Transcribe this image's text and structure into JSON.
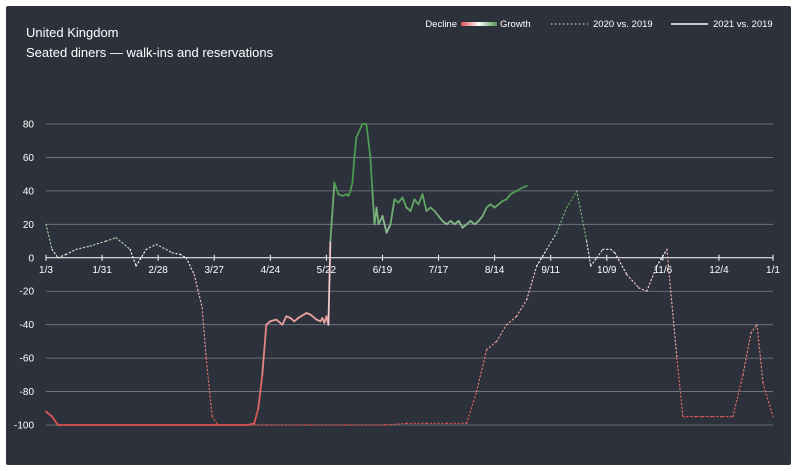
{
  "header": {
    "title": "United Kingdom",
    "subtitle": "Seated diners — walk-ins and reservations"
  },
  "legend": {
    "decline_label": "Decline",
    "growth_label": "Growth",
    "series_2020_label": "2020 vs. 2019",
    "series_2021_label": "2021 vs. 2019",
    "placement": "top-right"
  },
  "colors": {
    "background": "#2d313b",
    "gridline": "#7a7e87",
    "decline": "#d9534f",
    "growth": "#4c9a4f",
    "neutral": "#ffffff",
    "dotted": "#c9c9cc"
  },
  "chart_data": {
    "type": "line",
    "title": "United Kingdom",
    "subtitle": "Seated diners — walk-ins and reservations",
    "xlabel": "",
    "ylabel": "",
    "x_tick_labels": [
      "1/3",
      "1/31",
      "2/28",
      "3/27",
      "4/24",
      "5/22",
      "6/19",
      "7/17",
      "8/14",
      "9/11",
      "10/9",
      "11/6",
      "12/4",
      "1/1"
    ],
    "y_ticks": [
      80,
      60,
      40,
      20,
      0,
      -20,
      -40,
      -60,
      -80,
      -100
    ],
    "ylim": [
      -100,
      100
    ],
    "xlim_days": [
      0,
      363
    ],
    "grid": true,
    "series": [
      {
        "name": "2020 vs. 2019",
        "style": "dotted",
        "x_days": [
          0,
          3,
          6,
          10,
          15,
          22,
          30,
          35,
          42,
          45,
          50,
          55,
          60,
          63,
          67,
          70,
          74,
          78,
          80,
          83,
          86,
          90,
          100,
          110,
          130,
          150,
          170,
          180,
          190,
          200,
          210,
          215,
          220,
          225,
          230,
          235,
          240,
          245,
          250,
          255,
          260,
          265,
          270,
          272,
          275,
          278,
          280,
          282,
          284,
          290,
          296,
          300,
          305,
          310,
          315,
          318,
          320,
          322,
          325,
          328,
          333,
          338,
          343,
          348,
          352,
          355,
          358,
          363
        ],
        "y": [
          20,
          5,
          0,
          2,
          5,
          7,
          10,
          12,
          5,
          -5,
          5,
          8,
          5,
          3,
          2,
          0,
          -10,
          -30,
          -60,
          -95,
          -100,
          -100,
          -100,
          -100,
          -100,
          -100,
          -100,
          -99,
          -99,
          -99,
          -99,
          -80,
          -55,
          -50,
          -40,
          -35,
          -25,
          -5,
          5,
          15,
          30,
          40,
          10,
          -5,
          0,
          5,
          5,
          5,
          3,
          -10,
          -18,
          -20,
          -5,
          5,
          -60,
          -95,
          -95,
          -95,
          -95,
          -95,
          -95,
          -95,
          -95,
          -70,
          -45,
          -40,
          -75,
          -95
        ]
      },
      {
        "name": "2021 vs. 2019",
        "style": "solid",
        "coloring": "diverging (decline red, growth green)",
        "x_days": [
          0,
          3,
          6,
          10,
          20,
          30,
          40,
          50,
          60,
          70,
          80,
          85,
          90,
          95,
          98,
          101,
          104,
          106,
          108,
          110,
          112,
          115,
          118,
          120,
          122,
          124,
          126,
          130,
          132,
          135,
          137,
          138,
          139,
          140,
          141,
          142,
          144,
          146,
          148,
          150,
          151,
          152,
          153,
          154,
          155,
          158,
          160,
          161,
          162,
          163,
          164,
          165,
          166,
          168,
          170,
          172,
          174,
          176,
          178,
          180,
          182,
          184,
          186,
          188,
          190,
          192,
          194,
          196,
          198,
          200,
          202,
          204,
          206,
          208,
          210,
          212,
          214,
          216,
          218,
          220,
          222,
          224,
          226,
          228,
          230,
          232,
          235,
          238,
          240
        ],
        "y": [
          -92,
          -95,
          -100,
          -100,
          -100,
          -100,
          -100,
          -100,
          -100,
          -100,
          -100,
          -100,
          -100,
          -100,
          -100,
          -100,
          -99,
          -90,
          -70,
          -40,
          -38,
          -37,
          -40,
          -35,
          -36,
          -38,
          -36,
          -33,
          -34,
          -37,
          -38,
          -36,
          -39,
          -35,
          -40,
          10,
          45,
          38,
          37,
          38,
          37,
          40,
          45,
          60,
          72,
          80,
          80,
          70,
          60,
          40,
          20,
          30,
          20,
          25,
          15,
          20,
          35,
          33,
          36,
          30,
          28,
          35,
          32,
          38,
          28,
          30,
          28,
          25,
          22,
          20,
          22,
          20,
          22,
          18,
          20,
          22,
          20,
          22,
          25,
          30,
          32,
          30,
          32,
          34,
          35,
          38,
          40,
          42,
          43
        ]
      }
    ]
  }
}
